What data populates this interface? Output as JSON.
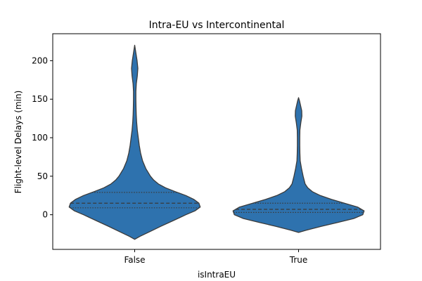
{
  "chart_data": {
    "type": "violin",
    "title": "Intra-EU vs Intercontinental",
    "xlabel": "isIntraEU",
    "ylabel": "Flight-level Delays (min)",
    "categories": [
      "False",
      "True"
    ],
    "ylim": [
      -45,
      235
    ],
    "yticks": [
      0,
      50,
      100,
      150,
      200
    ],
    "grid": false,
    "inner": "quartile",
    "colors": {
      "fill": "#2e72ae",
      "line": "#3a3a3a"
    },
    "violins": [
      {
        "category": "False",
        "min": -32,
        "max": 220,
        "quartiles": {
          "q1": 9,
          "median": 15,
          "q3": 29
        },
        "density": [
          [
            -32,
            0.0
          ],
          [
            -28,
            0.08
          ],
          [
            -22,
            0.23
          ],
          [
            -15,
            0.4
          ],
          [
            -8,
            0.58
          ],
          [
            0,
            0.78
          ],
          [
            5,
            0.92
          ],
          [
            10,
            1.0
          ],
          [
            15,
            0.98
          ],
          [
            20,
            0.9
          ],
          [
            25,
            0.78
          ],
          [
            30,
            0.62
          ],
          [
            35,
            0.47
          ],
          [
            40,
            0.36
          ],
          [
            45,
            0.29
          ],
          [
            50,
            0.24
          ],
          [
            60,
            0.17
          ],
          [
            70,
            0.12
          ],
          [
            80,
            0.09
          ],
          [
            90,
            0.07
          ],
          [
            100,
            0.055
          ],
          [
            110,
            0.04
          ],
          [
            120,
            0.03
          ],
          [
            130,
            0.024
          ],
          [
            140,
            0.02
          ],
          [
            150,
            0.018
          ],
          [
            160,
            0.018
          ],
          [
            170,
            0.025
          ],
          [
            180,
            0.04
          ],
          [
            190,
            0.048
          ],
          [
            200,
            0.036
          ],
          [
            210,
            0.018
          ],
          [
            220,
            0.0
          ]
        ]
      },
      {
        "category": "True",
        "min": -23,
        "max": 152,
        "quartiles": {
          "q1": 3,
          "median": 7,
          "q3": 15
        },
        "density": [
          [
            -23,
            0.0
          ],
          [
            -20,
            0.12
          ],
          [
            -15,
            0.35
          ],
          [
            -10,
            0.6
          ],
          [
            -5,
            0.84
          ],
          [
            0,
            0.98
          ],
          [
            5,
            1.0
          ],
          [
            10,
            0.9
          ],
          [
            15,
            0.7
          ],
          [
            20,
            0.5
          ],
          [
            25,
            0.33
          ],
          [
            30,
            0.21
          ],
          [
            35,
            0.14
          ],
          [
            40,
            0.1
          ],
          [
            50,
            0.07
          ],
          [
            60,
            0.045
          ],
          [
            70,
            0.025
          ],
          [
            80,
            0.02
          ],
          [
            90,
            0.018
          ],
          [
            100,
            0.018
          ],
          [
            110,
            0.02
          ],
          [
            120,
            0.035
          ],
          [
            128,
            0.05
          ],
          [
            135,
            0.048
          ],
          [
            142,
            0.03
          ],
          [
            148,
            0.014
          ],
          [
            152,
            0.0
          ]
        ]
      }
    ]
  }
}
